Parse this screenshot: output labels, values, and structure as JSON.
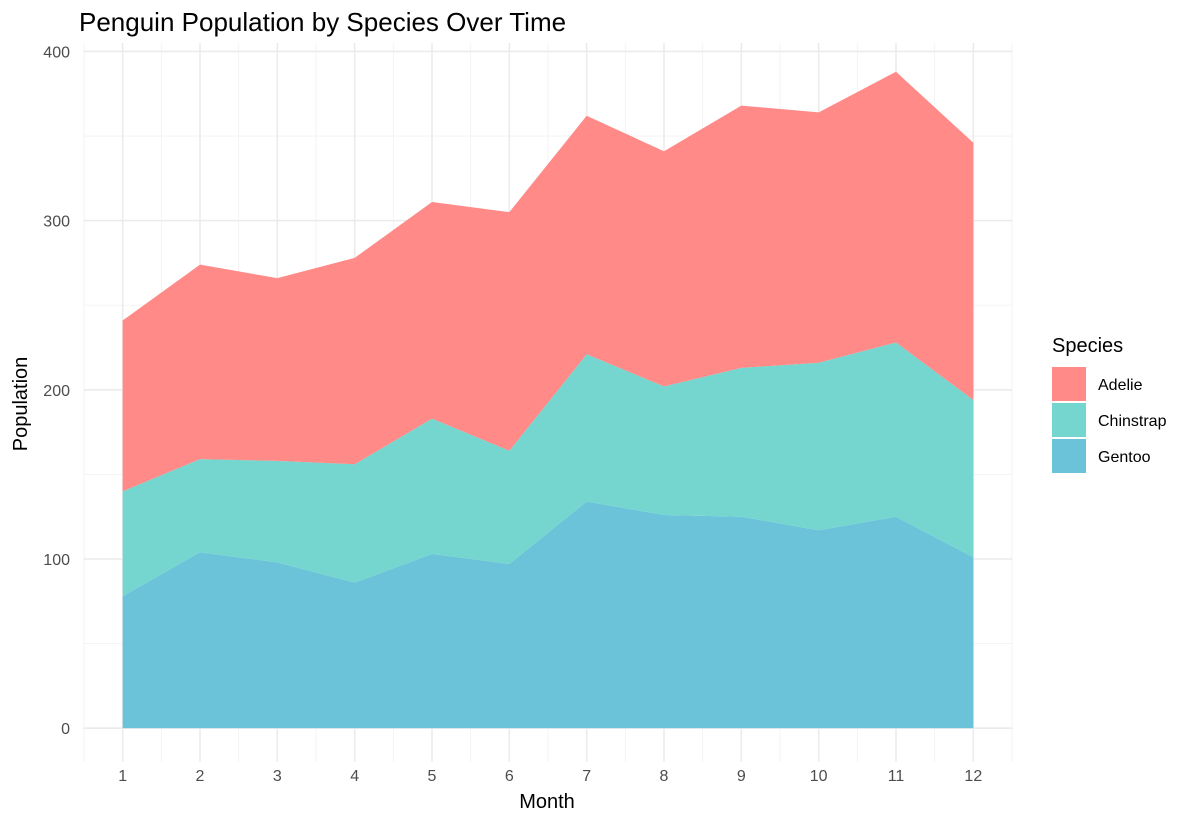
{
  "chart_data": {
    "type": "area",
    "stacked": true,
    "title": "Penguin Population by Species Over Time",
    "xlabel": "Month",
    "ylabel": "Population",
    "x": [
      1,
      2,
      3,
      4,
      5,
      6,
      7,
      8,
      9,
      10,
      11,
      12
    ],
    "xlim": [
      0.5,
      12.5
    ],
    "ylim": [
      -20,
      405
    ],
    "yticks": [
      0,
      100,
      200,
      300,
      400
    ],
    "grid": true,
    "legend": {
      "title": "Species",
      "position": "right"
    },
    "series": [
      {
        "name": "Gentoo",
        "color": "#6AC3D9",
        "values": [
          78,
          104,
          98,
          86,
          103,
          97,
          134,
          126,
          125,
          117,
          125,
          101
        ]
      },
      {
        "name": "Chinstrap",
        "color": "#74D6CE",
        "values": [
          62,
          55,
          60,
          70,
          80,
          67,
          87,
          76,
          88,
          99,
          103,
          93
        ]
      },
      {
        "name": "Adelie",
        "color": "#FF8A87",
        "values": [
          101,
          115,
          108,
          122,
          128,
          141,
          141,
          139,
          155,
          148,
          160,
          152
        ]
      }
    ],
    "legend_order": [
      "Adelie",
      "Chinstrap",
      "Gentoo"
    ]
  }
}
